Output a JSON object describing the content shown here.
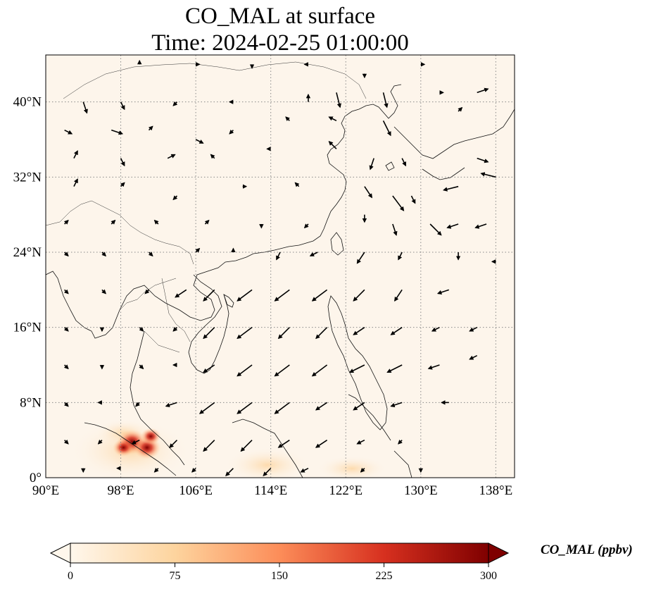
{
  "title": {
    "line1": "CO_MAL at surface",
    "line2": "Time: 2024-02-25 01:00:00"
  },
  "map": {
    "projection": "PlateCarree",
    "lon_range": [
      90,
      140
    ],
    "lat_range": [
      0,
      45
    ],
    "gridlines": "dotted",
    "x_ticks": [
      {
        "value": 90,
        "label": "90°E"
      },
      {
        "value": 98,
        "label": "98°E"
      },
      {
        "value": 106,
        "label": "106°E"
      },
      {
        "value": 114,
        "label": "114°E"
      },
      {
        "value": 122,
        "label": "122°E"
      },
      {
        "value": 130,
        "label": "130°E"
      },
      {
        "value": 138,
        "label": "138°E"
      }
    ],
    "y_ticks": [
      {
        "value": 0,
        "label": "0°"
      },
      {
        "value": 8,
        "label": "8°N"
      },
      {
        "value": 16,
        "label": "16°N"
      },
      {
        "value": 24,
        "label": "24°N"
      },
      {
        "value": 32,
        "label": "32°N"
      },
      {
        "value": 40,
        "label": "40°N"
      }
    ],
    "background_color": "#fdf5eb",
    "field": "CO_MAL concentration (ppbv), highest over Sumatra / Malay Peninsula near 2-4°N",
    "hotspots": [
      {
        "lon": 99.2,
        "lat": 3.8,
        "value": 300
      },
      {
        "lon": 100.8,
        "lat": 3.2,
        "value": 260
      },
      {
        "lon": 98.3,
        "lat": 3.2,
        "value": 170
      },
      {
        "lon": 101.2,
        "lat": 4.4,
        "value": 150
      }
    ]
  },
  "colorbar": {
    "label": "CO_MAL (ppbv)",
    "cmap": "OrRd",
    "min": 0,
    "max": 300,
    "extend": "both",
    "ticks": [
      {
        "value": 0,
        "label": "0"
      },
      {
        "value": 75,
        "label": "75"
      },
      {
        "value": 150,
        "label": "150"
      },
      {
        "value": 225,
        "label": "225"
      },
      {
        "value": 300,
        "label": "300"
      }
    ],
    "colors": [
      "#fff7ec",
      "#fdd49e",
      "#fc8d59",
      "#d7301f",
      "#7f0000"
    ]
  },
  "winds": {
    "description": "surface wind vectors (black arrows)",
    "vectors": [
      [
        100,
        44,
        0,
        1
      ],
      [
        106,
        44,
        1,
        0
      ],
      [
        112,
        44,
        0,
        -1
      ],
      [
        118,
        44,
        -1,
        0
      ],
      [
        124,
        43,
        0,
        -1
      ],
      [
        130,
        44,
        1,
        0
      ],
      [
        94,
        40,
        1,
        -3
      ],
      [
        98,
        40,
        1,
        -2
      ],
      [
        104,
        40,
        -1,
        -1
      ],
      [
        110,
        40,
        -1,
        0
      ],
      [
        118,
        40,
        0,
        2
      ],
      [
        121,
        41,
        1,
        -4
      ],
      [
        126,
        41,
        1,
        -4
      ],
      [
        132,
        41,
        1,
        0
      ],
      [
        136,
        41,
        3,
        1
      ],
      [
        92,
        37,
        2,
        -1
      ],
      [
        97,
        37,
        3,
        -1
      ],
      [
        101,
        37,
        1,
        1
      ],
      [
        106,
        36,
        2,
        -1
      ],
      [
        110,
        37,
        -1,
        -1
      ],
      [
        116,
        38,
        -1,
        1
      ],
      [
        121,
        38,
        -2,
        1
      ],
      [
        126,
        38,
        2,
        -4
      ],
      [
        134,
        39,
        1,
        1
      ],
      [
        93,
        34,
        1,
        2
      ],
      [
        98,
        34,
        1,
        -2
      ],
      [
        103,
        34,
        2,
        1
      ],
      [
        108,
        34,
        -1,
        1
      ],
      [
        114,
        35,
        -1,
        0
      ],
      [
        121,
        35,
        -2,
        2
      ],
      [
        125,
        34,
        -1,
        -3
      ],
      [
        128,
        34,
        1,
        -2
      ],
      [
        136,
        34,
        3,
        -1
      ],
      [
        93,
        31,
        1,
        2
      ],
      [
        98,
        31,
        1,
        1
      ],
      [
        104,
        30,
        -1,
        -1
      ],
      [
        111,
        31,
        1,
        0
      ],
      [
        117,
        31,
        -1,
        1
      ],
      [
        124,
        31,
        2,
        -3
      ],
      [
        127,
        30,
        3,
        -4
      ],
      [
        129,
        30,
        1,
        -2
      ],
      [
        134,
        31,
        -4,
        -1
      ],
      [
        138,
        32,
        -4,
        1
      ],
      [
        92,
        27,
        1,
        1
      ],
      [
        97,
        27,
        1,
        1
      ],
      [
        102,
        27,
        -1,
        1
      ],
      [
        107,
        27,
        1,
        1
      ],
      [
        113,
        27,
        0,
        -1
      ],
      [
        118,
        27,
        -1,
        -1
      ],
      [
        124,
        28,
        0,
        -2
      ],
      [
        127,
        27,
        1,
        -3
      ],
      [
        131,
        27,
        3,
        -3
      ],
      [
        134,
        27,
        -3,
        -1
      ],
      [
        137,
        27,
        -3,
        -1
      ],
      [
        92,
        24,
        1,
        -1
      ],
      [
        96,
        24,
        1,
        -1
      ],
      [
        101,
        24,
        1,
        -1
      ],
      [
        106,
        24,
        1,
        1
      ],
      [
        110,
        24,
        0,
        1
      ],
      [
        115,
        24,
        -1,
        -2
      ],
      [
        119,
        24,
        -2,
        -1
      ],
      [
        124,
        24,
        -2,
        -3
      ],
      [
        128,
        24,
        -1,
        -2
      ],
      [
        134,
        24,
        0,
        -2
      ],
      [
        138,
        23,
        -1,
        0
      ],
      [
        92,
        20,
        1,
        -1
      ],
      [
        96,
        20,
        1,
        -1
      ],
      [
        101,
        20,
        -1,
        -1
      ],
      [
        105,
        20,
        -3,
        -2
      ],
      [
        108,
        20,
        -3,
        -3
      ],
      [
        112,
        20,
        -4,
        -3
      ],
      [
        116,
        20,
        -4,
        -3
      ],
      [
        120,
        20,
        -4,
        -3
      ],
      [
        124,
        20,
        -3,
        -3
      ],
      [
        128,
        20,
        -2,
        -3
      ],
      [
        133,
        20,
        -3,
        -1
      ],
      [
        92,
        16,
        1,
        -1
      ],
      [
        96,
        16,
        0,
        -1
      ],
      [
        100,
        16,
        1,
        -1
      ],
      [
        104,
        16,
        -1,
        -1
      ],
      [
        108,
        16,
        -3,
        -3
      ],
      [
        112,
        16,
        -4,
        -3
      ],
      [
        116,
        16,
        -3,
        -3
      ],
      [
        120,
        16,
        -3,
        -3
      ],
      [
        124,
        16,
        -3,
        -2
      ],
      [
        128,
        16,
        -3,
        -2
      ],
      [
        132,
        16,
        -2,
        -1
      ],
      [
        136,
        16,
        -2,
        -1
      ],
      [
        92,
        12,
        1,
        -1
      ],
      [
        96,
        12,
        0,
        -1
      ],
      [
        100,
        12,
        1,
        -1
      ],
      [
        104,
        12,
        -1,
        0
      ],
      [
        108,
        12,
        -3,
        -2
      ],
      [
        112,
        12,
        -4,
        -3
      ],
      [
        116,
        12,
        -4,
        -3
      ],
      [
        120,
        12,
        -4,
        -3
      ],
      [
        124,
        12,
        -4,
        -2
      ],
      [
        128,
        12,
        -4,
        -2
      ],
      [
        132,
        12,
        -3,
        -1
      ],
      [
        136,
        13,
        -2,
        -1
      ],
      [
        92,
        8,
        1,
        -1
      ],
      [
        96,
        8,
        -1,
        0
      ],
      [
        100,
        8,
        -1,
        -1
      ],
      [
        104,
        8,
        -3,
        -1
      ],
      [
        108,
        8,
        -4,
        -3
      ],
      [
        112,
        8,
        -4,
        -3
      ],
      [
        116,
        8,
        -4,
        -3
      ],
      [
        120,
        8,
        -3,
        -2
      ],
      [
        124,
        8,
        -3,
        -2
      ],
      [
        128,
        8,
        -3,
        -1
      ],
      [
        133,
        8,
        -2,
        0
      ],
      [
        92,
        4,
        1,
        -1
      ],
      [
        96,
        4,
        -1,
        -1
      ],
      [
        100,
        4,
        -2,
        -1
      ],
      [
        104,
        4,
        -2,
        -2
      ],
      [
        108,
        4,
        -3,
        -3
      ],
      [
        112,
        4,
        -3,
        -3
      ],
      [
        116,
        4,
        -3,
        -2
      ],
      [
        120,
        4,
        -3,
        -2
      ],
      [
        124,
        4,
        -2,
        -1
      ],
      [
        128,
        4,
        -1,
        -1
      ],
      [
        94,
        1,
        0,
        -1
      ],
      [
        98,
        1,
        -1,
        0
      ],
      [
        102,
        1,
        -1,
        -1
      ],
      [
        106,
        1,
        -1,
        -1
      ],
      [
        110,
        1,
        -2,
        -2
      ],
      [
        114,
        1,
        -2,
        -2
      ],
      [
        118,
        1,
        -2,
        -1
      ],
      [
        124,
        1,
        -1,
        -1
      ],
      [
        130,
        1,
        0,
        -1
      ]
    ]
  }
}
